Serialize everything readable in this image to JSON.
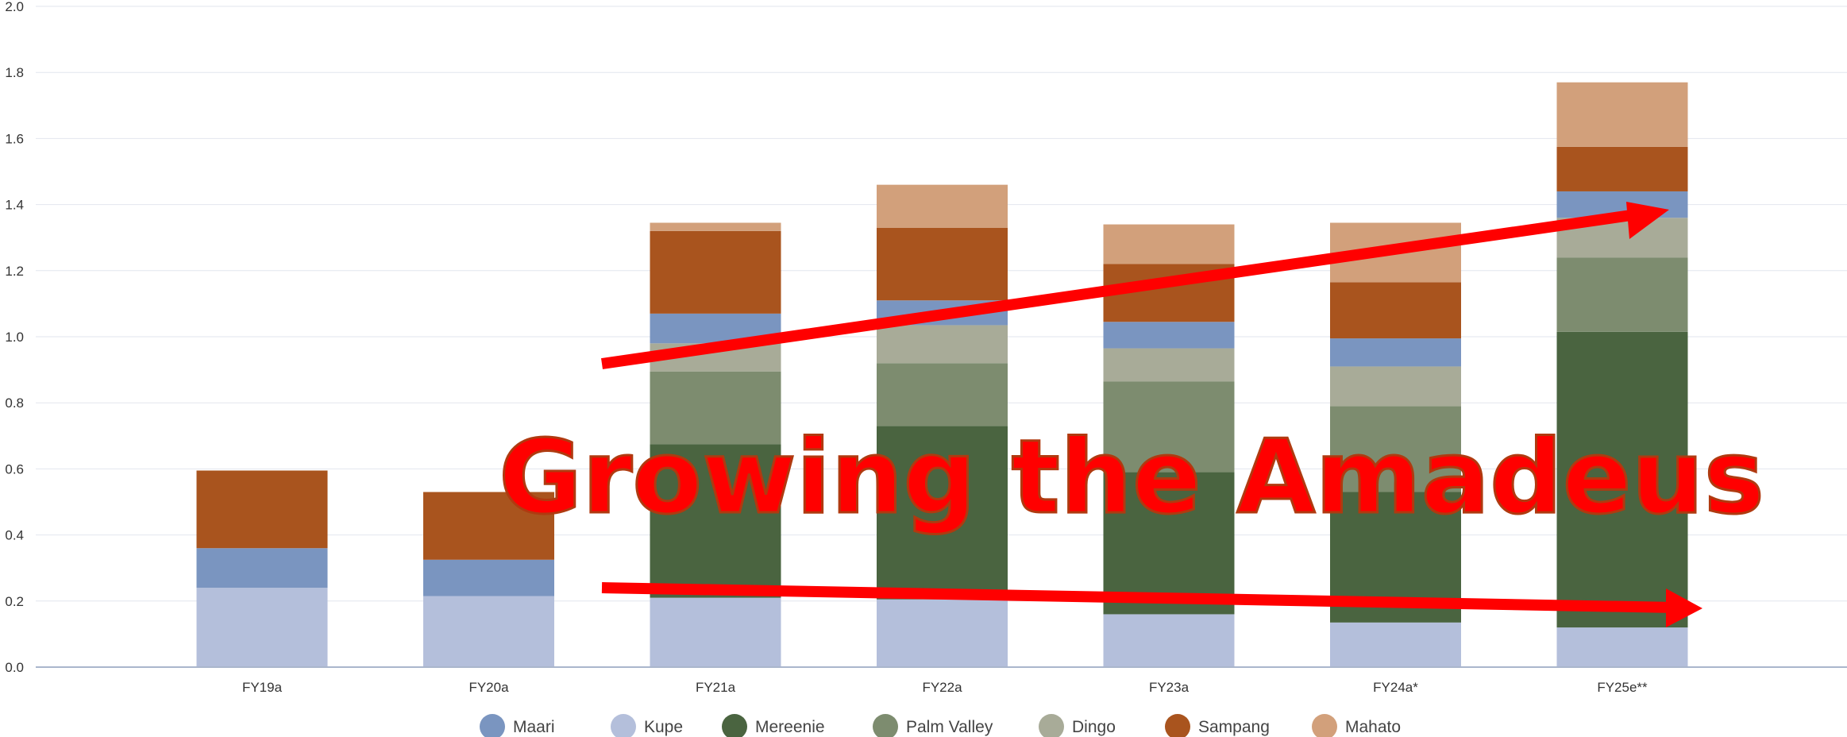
{
  "chart_data": {
    "type": "bar",
    "stacked": true,
    "title": "",
    "xlabel": "",
    "ylabel": "",
    "ylim": [
      0,
      2.0
    ],
    "yticks": [
      "0.0",
      "0.2",
      "0.4",
      "0.6",
      "0.8",
      "1.0",
      "1.2",
      "1.4",
      "1.6",
      "1.8",
      "2.0"
    ],
    "grid": true,
    "legend_position": "bottom",
    "categories": [
      "FY19a",
      "FY20a",
      "FY21a",
      "FY22a",
      "FY23a",
      "FY24a*",
      "FY25e**"
    ],
    "series": [
      {
        "name": "Kupe",
        "color": "#b4bfdb",
        "values": [
          0.24,
          0.215,
          0.21,
          0.205,
          0.16,
          0.135,
          0.12
        ]
      },
      {
        "name": "Mereenie",
        "color": "#4a6440",
        "values": [
          0,
          0,
          0.465,
          0.525,
          0.43,
          0.395,
          0.895
        ]
      },
      {
        "name": "Palm Valley",
        "color": "#7d8c6f",
        "values": [
          0,
          0,
          0.22,
          0.19,
          0.275,
          0.26,
          0.225
        ]
      },
      {
        "name": "Dingo",
        "color": "#a8ab98",
        "values": [
          0,
          0,
          0.085,
          0.115,
          0.1,
          0.12,
          0.12
        ]
      },
      {
        "name": "Maari",
        "color": "#7a95c0",
        "values": [
          0.12,
          0.11,
          0.09,
          0.075,
          0.08,
          0.085,
          0.08
        ]
      },
      {
        "name": "Sampang",
        "color": "#a9541e",
        "values": [
          0.235,
          0.205,
          0.25,
          0.22,
          0.175,
          0.17,
          0.135
        ]
      },
      {
        "name": "Mahato",
        "color": "#d2a07b",
        "values": [
          0,
          0,
          0.025,
          0.13,
          0.12,
          0.18,
          0.195
        ]
      }
    ],
    "legend_order": [
      "Maari",
      "Kupe",
      "Mereenie",
      "Palm Valley",
      "Dingo",
      "Sampang",
      "Mahato"
    ],
    "annotations": {
      "headline": "Growing the Amadeus",
      "arrow_color": "#ff0000"
    }
  }
}
